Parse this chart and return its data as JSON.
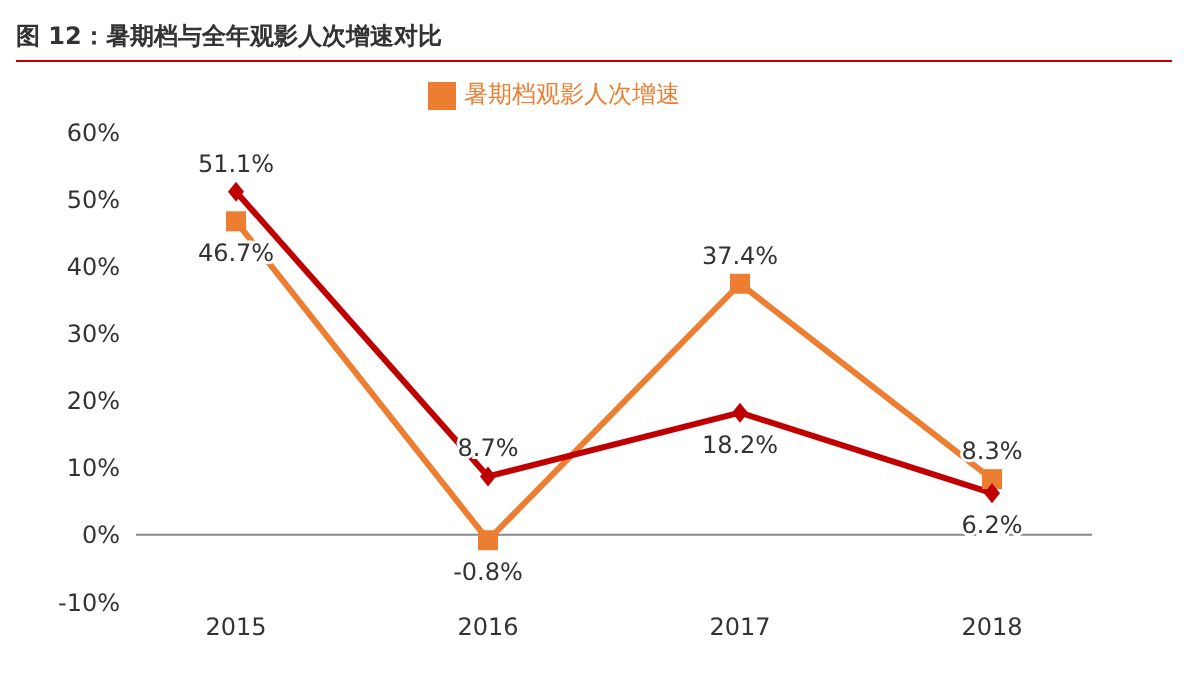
{
  "chart_data": {
    "type": "line",
    "title": "图 12：暑期档与全年观影人次增速对比",
    "categories": [
      "2015",
      "2016",
      "2017",
      "2018"
    ],
    "series": [
      {
        "name": "暑期档观影人次增速",
        "color": "#ed7d31",
        "values": [
          46.7,
          -0.8,
          37.4,
          8.3
        ],
        "value_labels": [
          "46.7%",
          "-0.8%",
          "37.4%",
          "8.3%"
        ],
        "marker": "square"
      },
      {
        "color": "#c00000",
        "values": [
          51.1,
          8.7,
          18.2,
          6.2
        ],
        "value_labels": [
          "51.1%",
          "8.7%",
          "18.2%",
          "6.2%"
        ],
        "marker": "diamond"
      }
    ],
    "ylim": [
      -10,
      60
    ],
    "yticks": [
      {
        "value": -10,
        "label": "-10%"
      },
      {
        "value": 0,
        "label": "0%"
      },
      {
        "value": 10,
        "label": "10%"
      },
      {
        "value": 20,
        "label": "20%"
      },
      {
        "value": 30,
        "label": "30%"
      },
      {
        "value": 40,
        "label": "40%"
      },
      {
        "value": 50,
        "label": "50%"
      },
      {
        "value": 60,
        "label": "60%"
      }
    ],
    "legend": "top",
    "line_style": "solid"
  }
}
